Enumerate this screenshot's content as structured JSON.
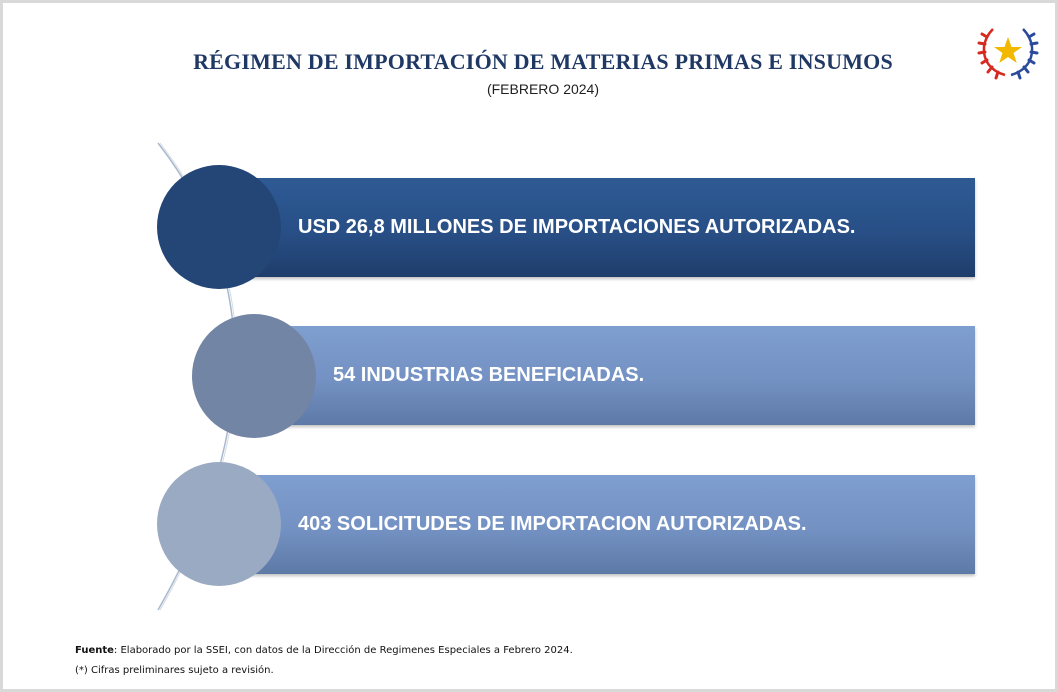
{
  "header": {
    "title": "RÉGIMEN DE IMPORTACIÓN DE MATERIAS PRIMAS E INSUMOS",
    "subtitle": "(FEBRERO 2024)"
  },
  "items": [
    {
      "label": "USD  26,8 MILLONES DE IMPORTACIONES AUTORIZADAS."
    },
    {
      "label": "54 INDUSTRIAS BENEFICIADAS."
    },
    {
      "label": "403 SOLICITUDES DE IMPORTACION AUTORIZADAS."
    }
  ],
  "footer": {
    "source_label": "Fuente",
    "source_text": ": Elaborado por la SSEI, con datos de la Dirección de Regimenes Especiales a Febrero 2024.",
    "note": "(*) Cifras preliminares sujeto a revisión."
  },
  "colors": {
    "title": "#1f3864",
    "bar_dark": "#284f86",
    "bar_light": "#7391c2",
    "circle_1": "#234677",
    "circle_2": "#7385a4",
    "circle_3": "#9aaac3"
  },
  "emblem": {
    "icon": "star-emblem-icon"
  }
}
